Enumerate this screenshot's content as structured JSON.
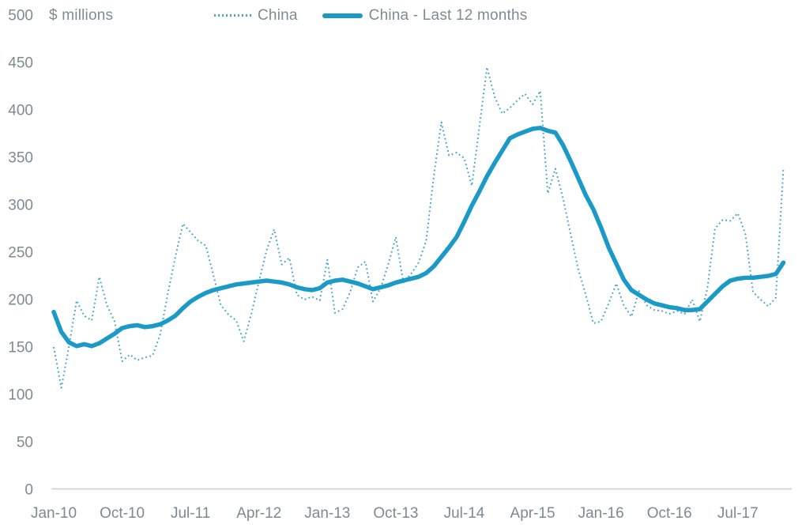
{
  "header": {
    "y_axis_title": "$ millions",
    "legend": [
      {
        "label": "China",
        "style": "dotted"
      },
      {
        "label": "China - Last 12 months",
        "style": "solid"
      }
    ]
  },
  "colors": {
    "series_dotted": "#41a5cb",
    "series_solid": "#1b9ac8",
    "axis_text": "#7d8b91",
    "axis_line": "#c9ced1",
    "background": "#ffffff"
  },
  "chart_data": {
    "type": "line",
    "title": "",
    "ylabel": "$ millions",
    "grid": false,
    "legend_position": "top",
    "y_axis": {
      "min": 0,
      "max": 500,
      "tick_step": 50,
      "ticks": [
        0,
        50,
        100,
        150,
        200,
        250,
        300,
        350,
        400,
        450,
        500
      ]
    },
    "x_axis": {
      "tick_labels": [
        "Jan-10",
        "Oct-10",
        "Jul-11",
        "Apr-12",
        "Jan-13",
        "Oct-13",
        "Jul-14",
        "Apr-15",
        "Jan-16",
        "Oct-16",
        "Jul-17"
      ],
      "tick_month_indices": [
        0,
        9,
        18,
        27,
        36,
        45,
        54,
        63,
        72,
        81,
        90
      ]
    },
    "x": [
      "Jan-10",
      "Feb-10",
      "Mar-10",
      "Apr-10",
      "May-10",
      "Jun-10",
      "Jul-10",
      "Aug-10",
      "Sep-10",
      "Oct-10",
      "Nov-10",
      "Dec-10",
      "Jan-11",
      "Feb-11",
      "Mar-11",
      "Apr-11",
      "May-11",
      "Jun-11",
      "Jul-11",
      "Aug-11",
      "Sep-11",
      "Oct-11",
      "Nov-11",
      "Dec-11",
      "Jan-12",
      "Feb-12",
      "Mar-12",
      "Apr-12",
      "May-12",
      "Jun-12",
      "Jul-12",
      "Aug-12",
      "Sep-12",
      "Oct-12",
      "Nov-12",
      "Dec-12",
      "Jan-13",
      "Feb-13",
      "Mar-13",
      "Apr-13",
      "May-13",
      "Jun-13",
      "Jul-13",
      "Aug-13",
      "Sep-13",
      "Oct-13",
      "Nov-13",
      "Dec-13",
      "Jan-14",
      "Feb-14",
      "Mar-14",
      "Apr-14",
      "May-14",
      "Jun-14",
      "Jul-14",
      "Aug-14",
      "Sep-14",
      "Oct-14",
      "Nov-14",
      "Dec-14",
      "Jan-15",
      "Feb-15",
      "Mar-15",
      "Apr-15",
      "May-15",
      "Jun-15",
      "Jul-15",
      "Aug-15",
      "Sep-15",
      "Oct-15",
      "Nov-15",
      "Dec-15",
      "Jan-16",
      "Feb-16",
      "Mar-16",
      "Apr-16",
      "May-16",
      "Jun-16",
      "Jul-16",
      "Aug-16",
      "Sep-16",
      "Oct-16",
      "Nov-16",
      "Dec-16",
      "Jan-17",
      "Feb-17",
      "Mar-17",
      "Apr-17",
      "May-17",
      "Jun-17",
      "Jul-17",
      "Aug-17",
      "Sep-17",
      "Oct-17",
      "Nov-17",
      "Dec-17",
      "Jan-18"
    ],
    "series": [
      {
        "name": "China",
        "style": "dotted",
        "values": [
          150,
          107,
          150,
          199,
          183,
          178,
          224,
          194,
          177,
          135,
          142,
          136,
          139,
          141,
          163,
          206,
          245,
          280,
          271,
          262,
          257,
          226,
          194,
          184,
          178,
          156,
          185,
          219,
          252,
          274,
          237,
          244,
          205,
          200,
          203,
          199,
          242,
          186,
          190,
          208,
          234,
          240,
          198,
          212,
          237,
          266,
          218,
          227,
          239,
          262,
          330,
          387,
          352,
          355,
          349,
          320,
          382,
          445,
          414,
          396,
          402,
          410,
          417,
          406,
          420,
          312,
          338,
          307,
          269,
          232,
          205,
          175,
          177,
          196,
          217,
          194,
          182,
          209,
          194,
          189,
          188,
          185,
          188,
          185,
          200,
          177,
          212,
          275,
          284,
          283,
          291,
          269,
          208,
          200,
          193,
          202,
          339
        ]
      },
      {
        "name": "China - Last 12 months",
        "style": "solid",
        "values": [
          187,
          166,
          155,
          151,
          153,
          151,
          154,
          159,
          164,
          170,
          172,
          173,
          171,
          172,
          174,
          178,
          183,
          191,
          198,
          203,
          207,
          210,
          212,
          214,
          216,
          217,
          218,
          219,
          220,
          219,
          218,
          216,
          213,
          211,
          210,
          212,
          218,
          220,
          221,
          219,
          217,
          214,
          211,
          213,
          215,
          218,
          220,
          222,
          224,
          228,
          235,
          245,
          255,
          266,
          282,
          299,
          314,
          330,
          344,
          357,
          370,
          374,
          377,
          380,
          381,
          378,
          376,
          363,
          346,
          328,
          310,
          295,
          276,
          255,
          238,
          221,
          210,
          205,
          200,
          196,
          194,
          192,
          191,
          189,
          189,
          190,
          198,
          206,
          214,
          220,
          222,
          223,
          223,
          224,
          225,
          227,
          239
        ]
      }
    ]
  }
}
